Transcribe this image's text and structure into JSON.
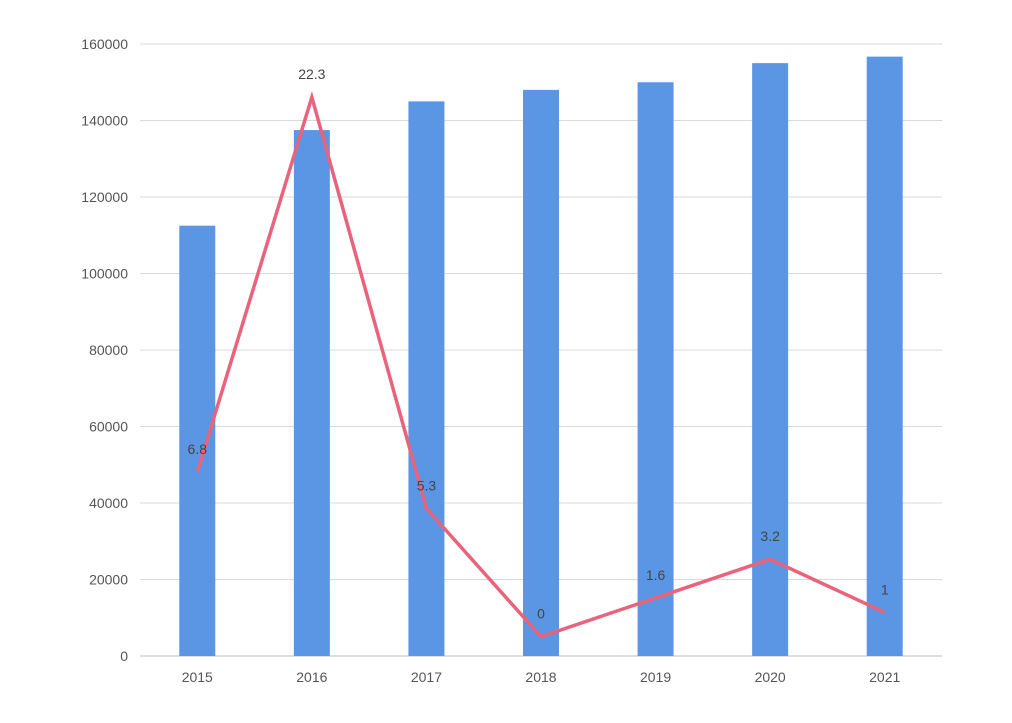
{
  "chart_data": {
    "type": "bar",
    "categories": [
      "2015",
      "2016",
      "2017",
      "2018",
      "2019",
      "2020",
      "2021"
    ],
    "ylim": [
      0,
      160000
    ],
    "yticks": [
      0,
      20000,
      40000,
      60000,
      80000,
      100000,
      120000,
      140000,
      160000
    ],
    "ytick_labels": [
      "0",
      "20000",
      "40000",
      "60000",
      "80000",
      "100000",
      "120000",
      "140000",
      "160000"
    ],
    "grid": true,
    "legend": "none",
    "series": [
      {
        "type": "bar",
        "color": "#5b96e5",
        "values": [
          112500,
          137500,
          145000,
          148000,
          150000,
          155000,
          156700
        ]
      },
      {
        "type": "line",
        "color": "#e8637c",
        "values": [
          6.8,
          22.3,
          5.3,
          0,
          1.6,
          3.2,
          1
        ],
        "labels": [
          "6.8",
          "22.3",
          "5.3",
          "0",
          "1.6",
          "3.2",
          "1"
        ],
        "ylim": [
          -0.8,
          24.5
        ]
      }
    ]
  }
}
